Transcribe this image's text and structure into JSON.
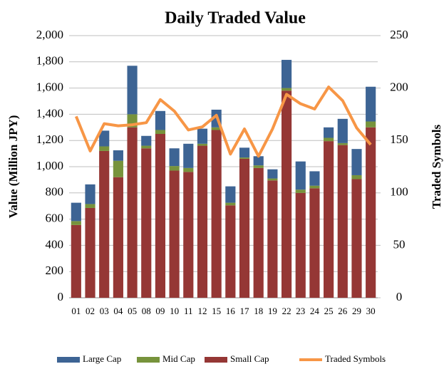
{
  "chart_data": {
    "type": "bar",
    "title": "Daily Traded Value",
    "ylabel": "Value (Million JPY)",
    "y2label": "Traded Symbols",
    "categories": [
      "01",
      "02",
      "03",
      "04",
      "05",
      "08",
      "09",
      "10",
      "11",
      "12",
      "15",
      "16",
      "17",
      "18",
      "19",
      "22",
      "23",
      "24",
      "25",
      "26",
      "29",
      "30"
    ],
    "stacked": true,
    "series": [
      {
        "name": "Large Cap",
        "color": "#3d6494",
        "values": [
          140,
          150,
          120,
          80,
          370,
          75,
          145,
          135,
          185,
          115,
          135,
          125,
          75,
          70,
          70,
          215,
          215,
          110,
          80,
          185,
          200,
          265
        ]
      },
      {
        "name": "Mid Cap",
        "color": "#77933c",
        "values": [
          30,
          30,
          35,
          125,
          100,
          20,
          30,
          35,
          30,
          15,
          20,
          20,
          10,
          20,
          15,
          20,
          25,
          20,
          25,
          15,
          30,
          45
        ]
      },
      {
        "name": "Small Cap",
        "color": "#953735",
        "values": [
          555,
          685,
          1120,
          920,
          1300,
          1140,
          1250,
          970,
          960,
          1160,
          1280,
          705,
          1060,
          990,
          895,
          1580,
          800,
          835,
          1195,
          1165,
          905,
          1300
        ]
      },
      {
        "name": "Traded Symbols",
        "type": "line",
        "axis": "y2",
        "color": "#f79646",
        "values": [
          173,
          140,
          166,
          164,
          165,
          167,
          189,
          178,
          160,
          163,
          174,
          137,
          161,
          135,
          161,
          194,
          185,
          180,
          201,
          188,
          162,
          146
        ]
      }
    ],
    "ylim": [
      0,
      2000
    ],
    "yticks": [
      0,
      200,
      400,
      600,
      800,
      {
        "value": 1000,
        "label": "1,000"
      },
      {
        "value": 1200,
        "label": "1,200"
      },
      {
        "value": 1400,
        "label": "1,400"
      },
      {
        "value": 1600,
        "label": "1,600"
      },
      {
        "value": 1800,
        "label": "1,800"
      },
      {
        "value": 2000,
        "label": "2,000"
      }
    ],
    "y2lim": [
      0,
      250
    ],
    "y2ticks": [
      0,
      50,
      100,
      150,
      200,
      250
    ],
    "legend": "bottom"
  }
}
